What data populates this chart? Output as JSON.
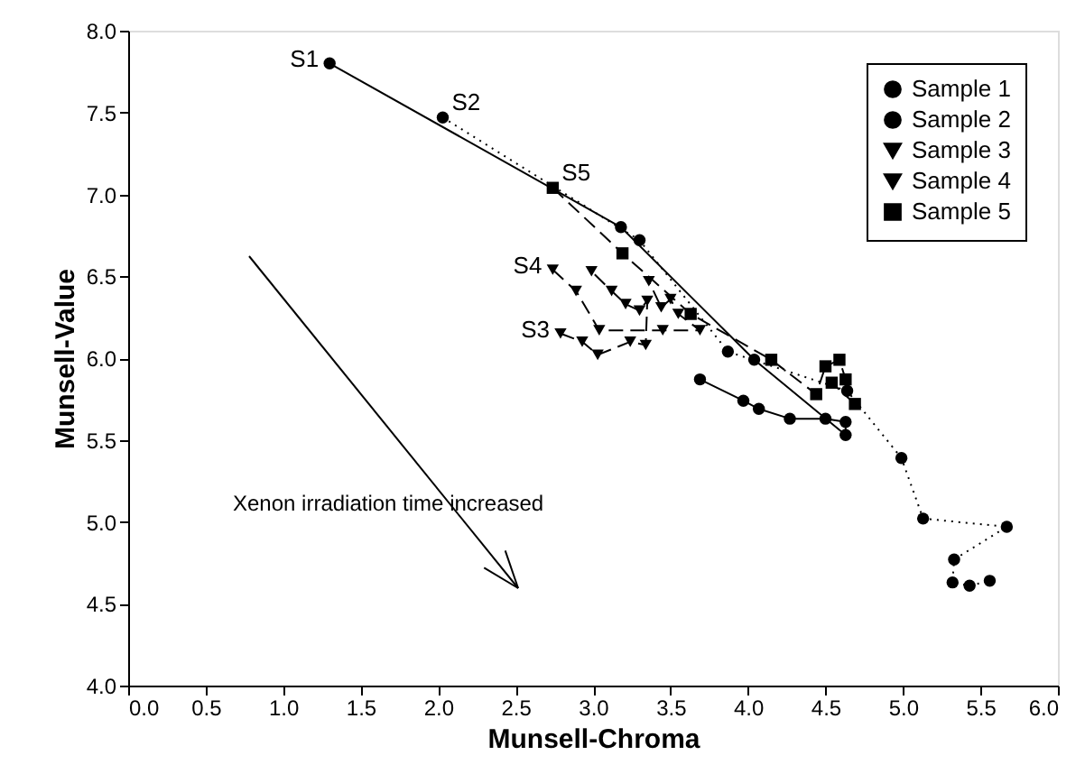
{
  "chart_data": {
    "type": "line",
    "xlabel": "Munsell-Chroma",
    "ylabel": "Munsell-Value",
    "xlim": [
      0,
      6
    ],
    "ylim": [
      4,
      8
    ],
    "xticks": [
      {
        "value": 0,
        "label": "0.0"
      },
      0.5,
      {
        "value": 1,
        "label": "1.0"
      },
      1.5,
      {
        "value": 2,
        "label": "2.0"
      },
      2.5,
      {
        "value": 3,
        "label": "3.0"
      },
      3.5,
      {
        "value": 4,
        "label": "4.0"
      },
      4.5,
      {
        "value": 5,
        "label": "5.0"
      },
      5.5,
      {
        "value": 6,
        "label": "6.0"
      }
    ],
    "yticks": [
      {
        "value": 4,
        "label": "4.0"
      },
      4.5,
      {
        "value": 5,
        "label": "5.0"
      },
      5.5,
      {
        "value": 6,
        "label": "6.0"
      },
      6.5,
      {
        "value": 7,
        "label": "7.0"
      },
      7.5,
      {
        "value": 8,
        "label": "8.0"
      }
    ],
    "grid": false,
    "legend": "top right",
    "series": [
      {
        "name": "Sample 1",
        "color": "#000000",
        "marker": "circle",
        "line_style": "solid",
        "x": [
          1.3,
          3.18,
          4.04,
          4.63,
          4.63,
          4.5,
          4.27,
          4.07,
          3.97,
          3.69
        ],
        "values": [
          7.8,
          6.8,
          5.99,
          5.53,
          5.61,
          5.63,
          5.63,
          5.69,
          5.74,
          5.87
        ]
      },
      {
        "name": "Sample 2",
        "color": "#000000",
        "marker": "circle",
        "line_style": "dotted",
        "x": [
          2.03,
          3.3,
          3.87,
          4.64,
          4.99,
          5.13,
          5.67,
          5.33,
          5.32,
          5.43,
          5.56
        ],
        "values": [
          7.47,
          6.72,
          6.04,
          5.8,
          5.39,
          5.02,
          4.97,
          4.77,
          4.63,
          4.61,
          4.64
        ]
      },
      {
        "name": "Sample 3",
        "color": "#000000",
        "marker": "triangle",
        "line_style": "dashed",
        "x": [
          2.79,
          2.93,
          3.03,
          3.24,
          3.34,
          3.35,
          3.3,
          3.21,
          3.12,
          2.99
        ],
        "values": [
          6.15,
          6.1,
          6.02,
          6.1,
          6.08,
          6.35,
          6.29,
          6.33,
          6.41,
          6.53
        ]
      },
      {
        "name": "Sample 4",
        "color": "#000000",
        "marker": "triangle",
        "line_style": "dashed",
        "x": [
          2.74,
          2.89,
          3.04,
          3.45,
          3.69,
          3.55,
          3.5,
          3.44,
          3.36
        ],
        "values": [
          6.54,
          6.41,
          6.17,
          6.17,
          6.17,
          6.27,
          6.36,
          6.31,
          6.47
        ]
      },
      {
        "name": "Sample 5",
        "color": "#000000",
        "marker": "square",
        "line_style": "dashed",
        "x": [
          2.74,
          3.19,
          3.63,
          4.15,
          4.44,
          4.5,
          4.59,
          4.63,
          4.54,
          4.69
        ],
        "values": [
          7.04,
          6.64,
          6.27,
          5.99,
          5.78,
          5.95,
          5.99,
          5.87,
          5.85,
          5.72
        ]
      }
    ],
    "annotations": [
      {
        "text": "S1",
        "x": 1.3,
        "y": 7.8
      },
      {
        "text": "S2",
        "x": 2.03,
        "y": 7.47
      },
      {
        "text": "S5",
        "x": 2.74,
        "y": 7.04
      },
      {
        "text": "S4",
        "x": 2.74,
        "y": 6.54
      },
      {
        "text": "S3",
        "x": 2.79,
        "y": 6.15
      },
      "Xenon irradiation time increased"
    ]
  }
}
